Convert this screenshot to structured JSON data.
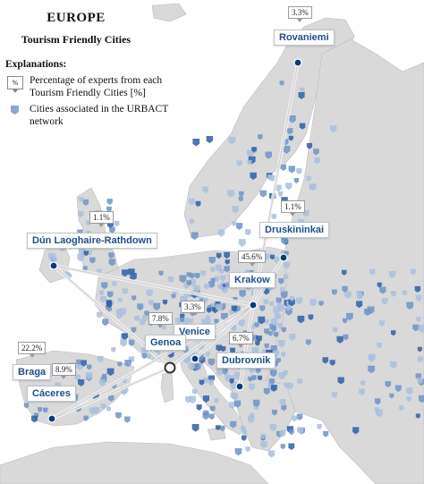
{
  "title": "EUROPE",
  "subtitle": "Tourism Friendly Cities",
  "legend": {
    "heading": "Explanations:",
    "pct_symbol": "%",
    "pct_desc": "Percentage of experts from each Tourism Friendly Cities [%]",
    "network_desc": "Cities associated in the URBACT network"
  },
  "cities": {
    "rovaniemi": {
      "name": "Rovaniemi",
      "pct": "3.3%"
    },
    "druskininkai": {
      "name": "Druskininkai",
      "pct": "1.1%"
    },
    "dun": {
      "name": "Dún Laoghaire-Rathdown",
      "pct": "1.1%"
    },
    "krakow": {
      "name": "Krakow",
      "pct": "45.6%"
    },
    "venice": {
      "name": "Venice",
      "pct": "3.3%"
    },
    "genoa": {
      "name": "Genoa",
      "pct": "7.8%"
    },
    "dubrovnik": {
      "name": "Dubrovnik",
      "pct": "6.7%"
    },
    "braga": {
      "name": "Braga",
      "pct": "22.2%"
    },
    "caceres": {
      "name": "Cáceres",
      "pct": "8.9%"
    }
  },
  "colors": {
    "sea": "#ffffff",
    "land": "#d9d9d9",
    "border": "#bdbdbd",
    "dot": "#0d3a78",
    "network": "#3d6fb0",
    "label_text": "#1f4e8c"
  }
}
